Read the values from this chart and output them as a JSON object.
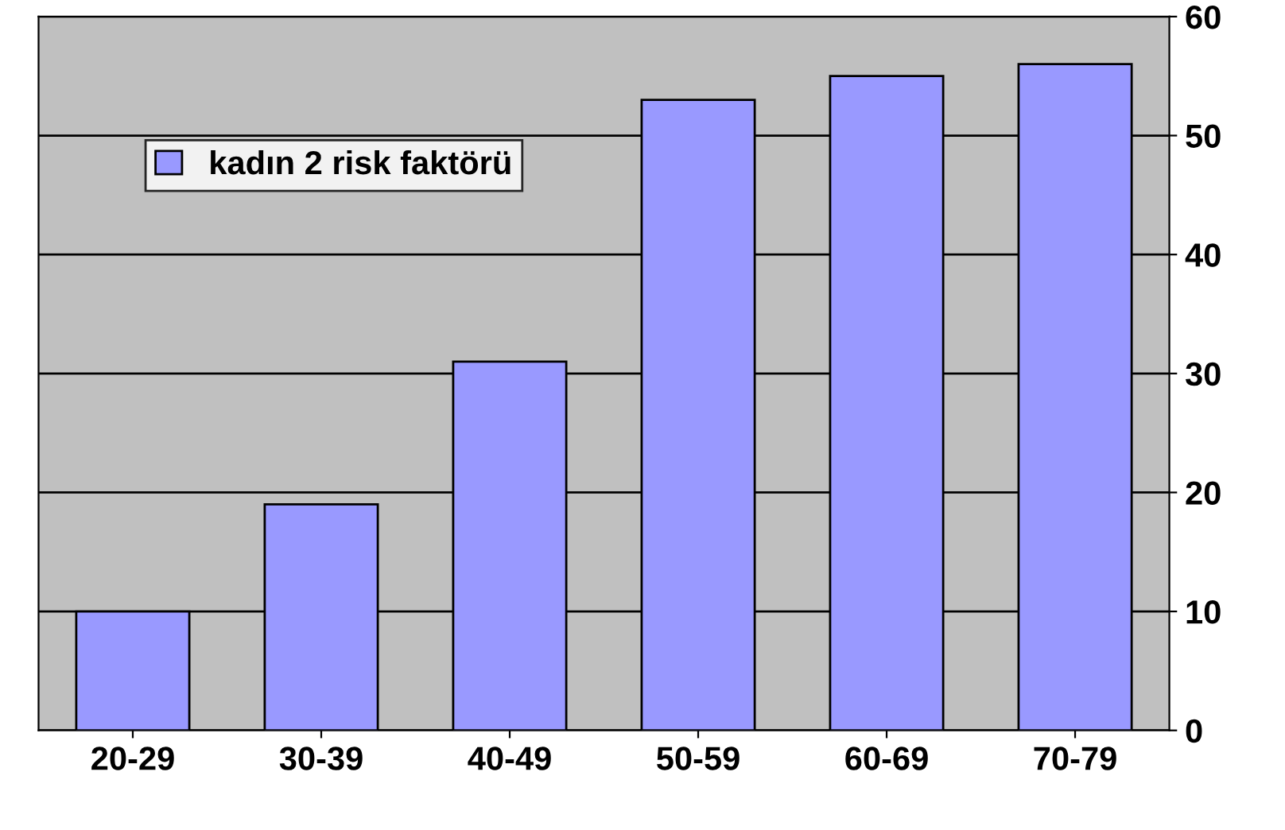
{
  "chart_data": {
    "type": "bar",
    "categories": [
      "20-29",
      "30-39",
      "40-49",
      "50-59",
      "60-69",
      "70-79"
    ],
    "series": [
      {
        "name": "kadın 2 risk faktörü",
        "color": "#9999ff",
        "values": [
          10,
          19,
          31,
          53,
          55,
          56
        ]
      }
    ],
    "ylim": [
      0,
      60
    ],
    "yticks": [
      0,
      10,
      20,
      30,
      40,
      50,
      60
    ],
    "grid": "y",
    "legend": "top left"
  }
}
